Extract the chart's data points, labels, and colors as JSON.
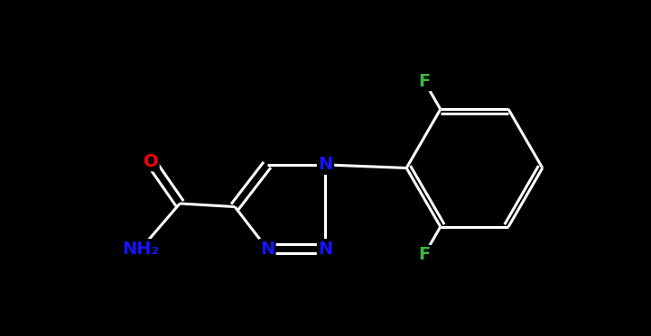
{
  "background_color": "#000000",
  "atom_colors": {
    "C": "#ffffff",
    "N": "#1414ff",
    "O": "#ff0000",
    "F": "#3cb843",
    "H": "#ffffff"
  },
  "bond_color": "#ffffff",
  "bond_width": 2.2,
  "figsize": [
    7.21,
    3.73
  ],
  "dpi": 100,
  "xlim": [
    0,
    10
  ],
  "ylim": [
    0,
    5.2
  ]
}
